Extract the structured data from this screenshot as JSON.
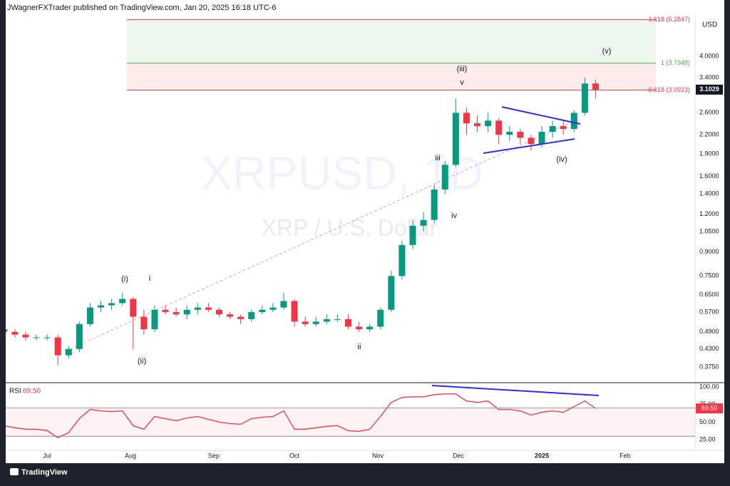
{
  "chart_data": {
    "type": "candlestick",
    "header": "JWagnerFXTrader published on TradingView.com, Jan 20, 2025 16:18 UTC-6",
    "title": "XRPUSD, 1D",
    "subtitle": "XRP / U.S. Dollar",
    "currency": "USD",
    "x": [
      -16,
      -12,
      -8,
      -4,
      0,
      4,
      8,
      12,
      16,
      20,
      24,
      28,
      32,
      36,
      40,
      44,
      48,
      52,
      56,
      60,
      64,
      68,
      72,
      76,
      80,
      84,
      88,
      92,
      96,
      100,
      104,
      108,
      112,
      116,
      120,
      124,
      128,
      132,
      136,
      140,
      144,
      148,
      152,
      156,
      160,
      164,
      168,
      172,
      176,
      180,
      184,
      188,
      192,
      196,
      200,
      204
    ],
    "open": [
      0.5,
      0.49,
      0.48,
      0.47,
      0.47,
      0.47,
      0.41,
      0.43,
      0.52,
      0.59,
      0.6,
      0.61,
      0.63,
      0.55,
      0.5,
      0.58,
      0.57,
      0.56,
      0.58,
      0.59,
      0.58,
      0.56,
      0.55,
      0.54,
      0.57,
      0.58,
      0.59,
      0.62,
      0.53,
      0.52,
      0.53,
      0.54,
      0.54,
      0.51,
      0.5,
      0.51,
      0.58,
      0.75,
      0.95,
      1.1,
      1.15,
      1.45,
      1.75,
      2.6,
      2.4,
      2.35,
      2.45,
      2.2,
      2.25,
      2.15,
      2.05,
      2.25,
      2.35,
      2.3,
      2.6,
      3.25
    ],
    "high": [
      0.51,
      0.5,
      0.49,
      0.48,
      0.48,
      0.48,
      0.44,
      0.53,
      0.61,
      0.62,
      0.63,
      0.66,
      0.64,
      0.58,
      0.6,
      0.6,
      0.59,
      0.6,
      0.61,
      0.61,
      0.59,
      0.57,
      0.56,
      0.58,
      0.6,
      0.61,
      0.66,
      0.63,
      0.55,
      0.55,
      0.56,
      0.56,
      0.56,
      0.53,
      0.52,
      0.59,
      0.78,
      0.98,
      1.15,
      1.22,
      1.5,
      1.8,
      2.9,
      2.7,
      2.55,
      2.6,
      2.5,
      2.35,
      2.3,
      2.2,
      2.35,
      2.45,
      2.45,
      2.65,
      3.4,
      3.35
    ],
    "low": [
      0.48,
      0.47,
      0.46,
      0.46,
      0.46,
      0.38,
      0.4,
      0.42,
      0.51,
      0.57,
      0.58,
      0.6,
      0.43,
      0.48,
      0.49,
      0.56,
      0.55,
      0.54,
      0.56,
      0.57,
      0.55,
      0.54,
      0.52,
      0.53,
      0.56,
      0.57,
      0.58,
      0.51,
      0.51,
      0.51,
      0.52,
      0.53,
      0.5,
      0.49,
      0.49,
      0.5,
      0.57,
      0.73,
      0.92,
      1.05,
      1.12,
      1.4,
      1.72,
      2.2,
      2.25,
      2.25,
      2.05,
      2.1,
      2.05,
      1.95,
      2.0,
      2.15,
      2.2,
      2.25,
      2.55,
      2.9
    ],
    "close": [
      0.49,
      0.48,
      0.47,
      0.47,
      0.47,
      0.41,
      0.43,
      0.52,
      0.59,
      0.6,
      0.61,
      0.63,
      0.55,
      0.5,
      0.58,
      0.57,
      0.56,
      0.58,
      0.59,
      0.58,
      0.56,
      0.55,
      0.54,
      0.57,
      0.58,
      0.59,
      0.62,
      0.53,
      0.52,
      0.53,
      0.54,
      0.54,
      0.51,
      0.5,
      0.51,
      0.58,
      0.75,
      0.95,
      1.1,
      1.15,
      1.45,
      1.75,
      2.6,
      2.4,
      2.35,
      2.45,
      2.2,
      2.25,
      2.15,
      2.05,
      2.25,
      2.35,
      2.3,
      2.6,
      3.25,
      3.1029
    ],
    "up_color": "#089981",
    "down_color": "#f23645",
    "log_scale": true,
    "grid": false,
    "xlim": [
      -15.4,
      241
    ],
    "xticks": [
      {
        "value": 0,
        "label": "Jul"
      },
      {
        "value": 31,
        "label": "Aug"
      },
      {
        "value": 62,
        "label": "Sep"
      },
      {
        "value": 92,
        "label": "Oct"
      },
      {
        "value": 123,
        "label": "Nov"
      },
      {
        "value": 153,
        "label": "Dec"
      },
      {
        "value": 184,
        "label": "2025"
      },
      {
        "value": 215,
        "label": "Feb"
      }
    ],
    "ylim": [
      0.3365,
      5.509
    ],
    "yticks": [
      {
        "value": 0.375,
        "label": "0.3750"
      },
      {
        "value": 0.43,
        "label": "0.4300"
      },
      {
        "value": 0.49,
        "label": "0.4900"
      },
      {
        "value": 0.57,
        "label": "0.5700"
      },
      {
        "value": 0.65,
        "label": "0.6500"
      },
      {
        "value": 0.75,
        "label": "0.7500"
      },
      {
        "value": 0.9,
        "label": "0.9000"
      },
      {
        "value": 1.05,
        "label": "1.0500"
      },
      {
        "value": 1.2,
        "label": "1.2000"
      },
      {
        "value": 1.4,
        "label": "1.4000"
      },
      {
        "value": 1.6,
        "label": "1.6000"
      },
      {
        "value": 1.9,
        "label": "1.9000"
      },
      {
        "value": 2.2,
        "label": "2.2000"
      },
      {
        "value": 2.6,
        "label": "2.6000"
      },
      {
        "value": 3.4,
        "label": "3.4000"
      },
      {
        "value": 4.0,
        "label": "4.0000"
      }
    ],
    "fib_levels": [
      {
        "value": 5.2847,
        "label": "1.618 (5.2847)",
        "color": "#f23645"
      },
      {
        "value": 3.7948,
        "label": "1 (3.7948)",
        "color": "#4caf50"
      },
      {
        "value": 3.0923,
        "label": "0.618 (3.0923)",
        "color": "#f23645"
      }
    ],
    "annotations": [
      "(v)",
      "(iii)",
      "v",
      "iii",
      "iv",
      "(iv)",
      "(i)",
      "i",
      "(ii)",
      "ii"
    ],
    "indicator": {
      "name": "RSI",
      "type": "line",
      "color": "#f23645",
      "values": [
        45,
        42,
        40,
        40,
        38,
        28,
        35,
        55,
        68,
        66,
        65,
        66,
        45,
        40,
        58,
        55,
        52,
        56,
        58,
        54,
        50,
        48,
        47,
        55,
        57,
        58,
        66,
        40,
        40,
        42,
        44,
        45,
        38,
        37,
        40,
        58,
        78,
        85,
        86,
        86,
        89,
        90,
        90,
        80,
        78,
        80,
        68,
        68,
        66,
        60,
        64,
        66,
        64,
        72,
        80,
        69.5
      ],
      "last_label": "69.50",
      "ylim": [
        12,
        105
      ],
      "yticks": [
        {
          "value": 25,
          "label": "25.00"
        },
        {
          "value": 50,
          "label": "50.00"
        },
        {
          "value": 75,
          "label": "75.00"
        },
        {
          "value": 100,
          "label": "100.00"
        }
      ],
      "bands": [
        30,
        70
      ]
    }
  },
  "branding": "TradingView"
}
